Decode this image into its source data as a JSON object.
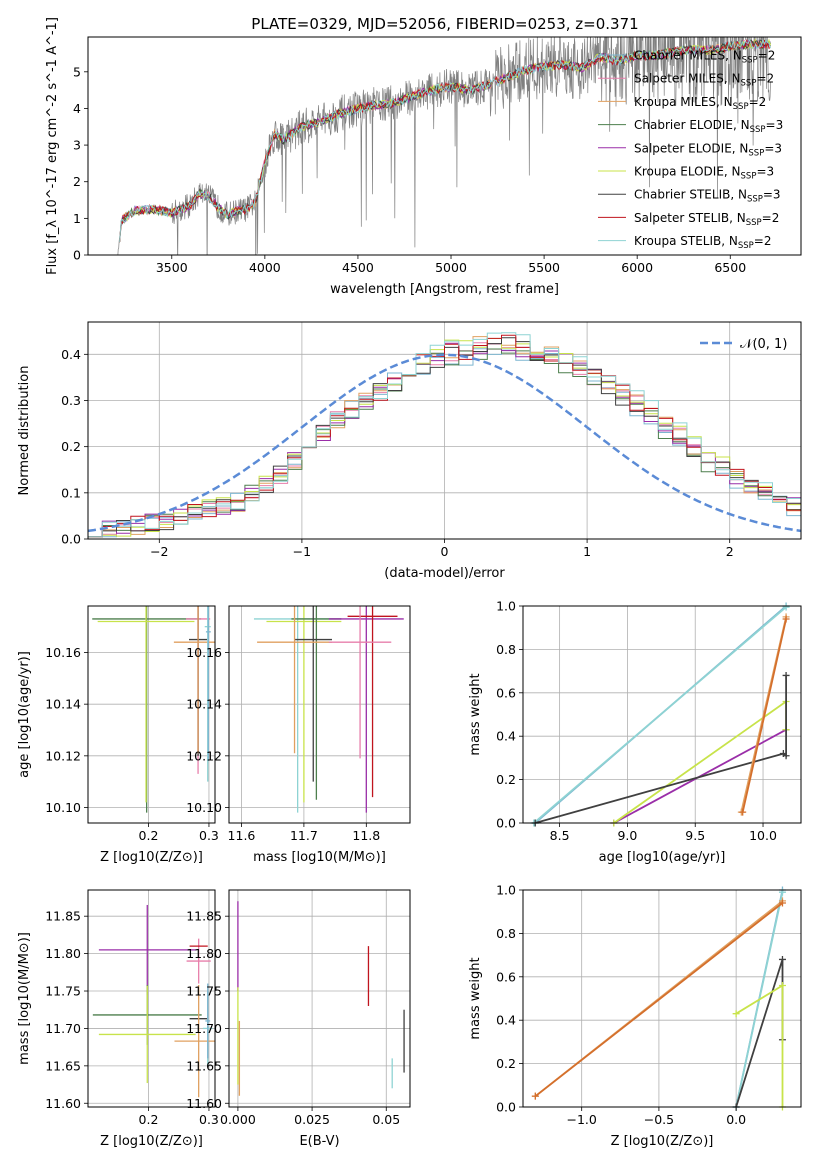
{
  "figure": {
    "title": "PLATE=0329, MJD=52056, FIBERID=0253, z=0.371"
  },
  "colors": [
    "#7db6d0",
    "#e77fab",
    "#e0a060",
    "#4d7f4d",
    "#9a2ea8",
    "#c8e34a",
    "#404040",
    "#c0141e",
    "#8ed3d3"
  ],
  "chart_data": [
    {
      "id": "spectrum",
      "type": "line",
      "xlabel": "wavelength [Angstrom, rest frame]",
      "ylabel": "Flux [f_λ 10^-17 erg cm^-2 s^-1 A^-1]",
      "xlim": [
        3050,
        6880
      ],
      "ylim": [
        0,
        5.95
      ],
      "xticks": [
        3500,
        4000,
        4500,
        5000,
        5500,
        6000,
        6500
      ],
      "yticks": [
        0,
        1,
        2,
        3,
        4,
        5
      ],
      "legend_position": "top-right",
      "series": [
        {
          "name": "Chabrier MILES, N_SSP=2",
          "color": "#7db6d0"
        },
        {
          "name": "Salpeter MILES, N_SSP=2",
          "color": "#e77fab"
        },
        {
          "name": "Kroupa MILES, N_SSP=2",
          "color": "#e0a060"
        },
        {
          "name": "Chabrier ELODIE, N_SSP=3",
          "color": "#4d7f4d"
        },
        {
          "name": "Salpeter ELODIE, N_SSP=3",
          "color": "#9a2ea8"
        },
        {
          "name": "Kroupa ELODIE, N_SSP=3",
          "color": "#c8e34a"
        },
        {
          "name": "Chabrier STELIB, N_SSP=3",
          "color": "#404040"
        },
        {
          "name": "Salpeter STELIB, N_SSP=2",
          "color": "#c0141e"
        },
        {
          "name": "Kroupa STELIB, N_SSP=2",
          "color": "#8ed3d3"
        }
      ],
      "model_continuum": {
        "x": [
          3210,
          3230,
          3300,
          3400,
          3500,
          3600,
          3650,
          3700,
          3750,
          3800,
          3850,
          3900,
          3950,
          4000,
          4050,
          4100,
          4200,
          4300,
          4400,
          4500,
          4600,
          4700,
          4800,
          4900,
          5000,
          5100,
          5200,
          5300,
          5400,
          5500,
          5600,
          5700,
          5800,
          5900,
          6000,
          6100,
          6200,
          6300,
          6400,
          6500,
          6600,
          6720
        ],
        "y": [
          0,
          0.95,
          1.2,
          1.25,
          1.15,
          1.35,
          1.7,
          1.6,
          1.3,
          1.1,
          1.2,
          1.25,
          1.45,
          2.55,
          3.3,
          3.15,
          3.5,
          3.65,
          3.85,
          4.0,
          4.1,
          4.15,
          4.35,
          4.5,
          4.6,
          4.5,
          4.65,
          4.85,
          5.05,
          5.15,
          5.2,
          5.1,
          5.4,
          5.3,
          5.45,
          5.45,
          5.55,
          5.6,
          5.6,
          5.7,
          5.75,
          5.75
        ]
      }
    },
    {
      "id": "residuals",
      "type": "line",
      "xlabel": "(data-model)/error",
      "ylabel": "Normed distribution",
      "xlim": [
        -2.5,
        2.5
      ],
      "ylim": [
        0,
        0.47
      ],
      "xticks": [
        -2,
        -1,
        0,
        1,
        2
      ],
      "yticks": [
        0.0,
        0.1,
        0.2,
        0.3,
        0.4
      ],
      "legend": "𝒩(0, 1)",
      "legend_position": "top-right",
      "gaussian": {
        "mu": 0,
        "sigma": 1,
        "color": "#5b8bd6"
      },
      "bin_width": 0.1,
      "hist_base": [
        0.015,
        0.02,
        0.025,
        0.03,
        0.035,
        0.04,
        0.05,
        0.055,
        0.065,
        0.07,
        0.08,
        0.1,
        0.12,
        0.14,
        0.17,
        0.2,
        0.23,
        0.26,
        0.28,
        0.3,
        0.32,
        0.34,
        0.36,
        0.38,
        0.39,
        0.4,
        0.4,
        0.41,
        0.42,
        0.42,
        0.41,
        0.4,
        0.39,
        0.38,
        0.36,
        0.35,
        0.33,
        0.31,
        0.29,
        0.27,
        0.24,
        0.22,
        0.19,
        0.17,
        0.15,
        0.13,
        0.11,
        0.09,
        0.08,
        0.07
      ]
    },
    {
      "id": "age_vs_Z",
      "type": "scatter",
      "xlabel": "Z [log10(Z/Z⊙)]",
      "ylabel": "age [log10(age/yr)]",
      "xlim": [
        0.1,
        0.31
      ],
      "ylim": [
        10.094,
        10.178
      ],
      "xticks": [
        0.2,
        0.3
      ],
      "yticks": [
        10.1,
        10.12,
        10.14,
        10.16
      ],
      "points": [
        {
          "x": 0.197,
          "y": 10.173,
          "xerr": 0.09,
          "yerr": 0.075,
          "color": "#4d7f4d"
        },
        {
          "x": 0.196,
          "y": 10.172,
          "xerr": 0.08,
          "yerr": 0.07,
          "color": "#c8e34a"
        },
        {
          "x": 0.282,
          "y": 10.173,
          "xerr": 0.02,
          "yerr": 0.06,
          "color": "#e77fab"
        },
        {
          "x": 0.282,
          "y": 10.165,
          "xerr": 0.015,
          "yerr": 0.045,
          "color": "#404040"
        },
        {
          "x": 0.282,
          "y": 10.164,
          "xerr": 0.04,
          "yerr": 0.043,
          "color": "#e0a060"
        },
        {
          "x": 0.298,
          "y": 10.17,
          "xerr": 0.005,
          "yerr": 0.06,
          "color": "#8ed3d3"
        },
        {
          "x": 0.299,
          "y": 10.168,
          "xerr": 0.004,
          "yerr": 0.05,
          "color": "#7db6d0"
        }
      ]
    },
    {
      "id": "age_vs_mass",
      "type": "scatter",
      "xlabel": "mass [log10(M/M⊙)]",
      "ylabel": "",
      "xlim": [
        11.58,
        11.87
      ],
      "ylim": [
        10.094,
        10.178
      ],
      "xticks": [
        11.6,
        11.7,
        11.8
      ],
      "yticks": [
        10.1,
        10.12,
        10.14,
        10.16
      ],
      "points": [
        {
          "x": 11.69,
          "y": 10.173,
          "xerr": 0.07,
          "yerr": 0.075,
          "color": "#8ed3d3"
        },
        {
          "x": 11.7,
          "y": 10.172,
          "xerr": 0.06,
          "yerr": 0.07,
          "color": "#c8e34a"
        },
        {
          "x": 11.72,
          "y": 10.173,
          "xerr": 0.04,
          "yerr": 0.07,
          "color": "#4d7f4d"
        },
        {
          "x": 11.8,
          "y": 10.173,
          "xerr": 0.06,
          "yerr": 0.075,
          "color": "#9a2ea8"
        },
        {
          "x": 11.81,
          "y": 10.174,
          "xerr": 0.04,
          "yerr": 0.07,
          "color": "#c0141e"
        },
        {
          "x": 11.715,
          "y": 10.165,
          "xerr": 0.03,
          "yerr": 0.055,
          "color": "#404040"
        },
        {
          "x": 11.685,
          "y": 10.164,
          "xerr": 0.06,
          "yerr": 0.043,
          "color": "#e0a060"
        },
        {
          "x": 11.79,
          "y": 10.164,
          "xerr": 0.05,
          "yerr": 0.045,
          "color": "#e77fab"
        }
      ]
    },
    {
      "id": "mass_weight_vs_age",
      "type": "line",
      "xlabel": "age [log10(age/yr)]",
      "ylabel": "mass weight",
      "xlim": [
        8.23,
        10.28
      ],
      "ylim": [
        0,
        1
      ],
      "xticks": [
        8.5,
        9.0,
        9.5,
        10.0
      ],
      "yticks": [
        0.0,
        0.2,
        0.4,
        0.6,
        0.8,
        1.0
      ],
      "series": [
        {
          "color": "#7db6d0",
          "x": [
            8.32,
            10.17
          ],
          "y": [
            0.0,
            1.0
          ]
        },
        {
          "color": "#8ed3d3",
          "x": [
            8.31,
            10.17
          ],
          "y": [
            0.0,
            0.995
          ]
        },
        {
          "color": "#9a2ea8",
          "x": [
            8.9,
            10.17
          ],
          "y": [
            0.0,
            0.43
          ]
        },
        {
          "color": "#c8e34a",
          "x": [
            8.9,
            10.17,
            10.17
          ],
          "y": [
            0.0,
            0.56,
            0.43
          ]
        },
        {
          "color": "#404040",
          "x": [
            8.32,
            10.15,
            10.17,
            10.17
          ],
          "y": [
            0.0,
            0.32,
            0.31,
            0.68
          ]
        },
        {
          "color": "#e0a060",
          "x": [
            9.84,
            10.17
          ],
          "y": [
            0.05,
            0.95
          ]
        },
        {
          "color": "#d46f2c",
          "x": [
            9.85,
            10.17
          ],
          "y": [
            0.05,
            0.94
          ]
        }
      ]
    },
    {
      "id": "mass_vs_Z",
      "type": "scatter",
      "xlabel": "Z [log10(Z/Z⊙)]",
      "ylabel": "mass [log10(M/M⊙)]",
      "xlim": [
        0.1,
        0.31
      ],
      "ylim": [
        11.595,
        11.885
      ],
      "xticks": [
        0.2,
        0.3
      ],
      "yticks": [
        11.6,
        11.65,
        11.7,
        11.75,
        11.8,
        11.85
      ],
      "points": [
        {
          "x": 0.198,
          "y": 11.805,
          "xerr": 0.08,
          "yerr": 0.06,
          "color": "#9a2ea8"
        },
        {
          "x": 0.198,
          "y": 11.718,
          "xerr": 0.09,
          "yerr": 0.04,
          "color": "#4d7f4d"
        },
        {
          "x": 0.198,
          "y": 11.692,
          "xerr": 0.08,
          "yerr": 0.065,
          "color": "#c8e34a"
        },
        {
          "x": 0.283,
          "y": 11.79,
          "xerr": 0.02,
          "yerr": 0.03,
          "color": "#e77fab"
        },
        {
          "x": 0.283,
          "y": 11.81,
          "xerr": 0.015,
          "yerr": 0.0,
          "color": "#c0141e"
        },
        {
          "x": 0.283,
          "y": 11.713,
          "xerr": 0.015,
          "yerr": 0.0,
          "color": "#404040"
        },
        {
          "x": 0.283,
          "y": 11.683,
          "xerr": 0.04,
          "yerr": 0.075,
          "color": "#e0a060"
        },
        {
          "x": 0.298,
          "y": 11.7,
          "xerr": 0.008,
          "yerr": 0.05,
          "color": "#8ed3d3"
        },
        {
          "x": 0.298,
          "y": 11.71,
          "xerr": 0.004,
          "yerr": 0.05,
          "color": "#7db6d0"
        }
      ]
    },
    {
      "id": "mass_vs_EBV",
      "type": "scatter",
      "xlabel": "E(B-V)",
      "ylabel": "",
      "xlim": [
        -0.003,
        0.058
      ],
      "ylim": [
        11.595,
        11.885
      ],
      "xticks": [
        0.0,
        0.025,
        0.05
      ],
      "yticks": [
        11.6,
        11.65,
        11.7,
        11.75,
        11.8,
        11.85
      ],
      "points": [
        {
          "x": 0.0,
          "y": 11.81,
          "xerr": 0,
          "yerr": 0.06,
          "color": "#9a2ea8"
        },
        {
          "x": 0.0,
          "y": 11.69,
          "xerr": 0,
          "yerr": 0.065,
          "color": "#c8e34a"
        },
        {
          "x": 0.0005,
          "y": 11.66,
          "xerr": 0,
          "yerr": 0.05,
          "color": "#e0a060"
        },
        {
          "x": 0.044,
          "y": 11.77,
          "xerr": 0,
          "yerr": 0.04,
          "color": "#c0141e"
        },
        {
          "x": 0.052,
          "y": 11.64,
          "xerr": 0,
          "yerr": 0.02,
          "color": "#8ed3d3"
        },
        {
          "x": 0.056,
          "y": 11.683,
          "xerr": 0,
          "yerr": 0.042,
          "color": "#404040"
        }
      ]
    },
    {
      "id": "mass_weight_vs_Z",
      "type": "line",
      "xlabel": "Z [log10(Z/Z⊙)]",
      "ylabel": "mass weight",
      "xlim": [
        -1.38,
        0.42
      ],
      "ylim": [
        0,
        1
      ],
      "xticks": [
        -1.0,
        -0.5,
        0.0
      ],
      "yticks": [
        0.0,
        0.2,
        0.4,
        0.6,
        0.8,
        1.0
      ],
      "series": [
        {
          "color": "#7db6d0",
          "x": [
            0.0,
            0.3
          ],
          "y": [
            0.0,
            1.0
          ]
        },
        {
          "color": "#8ed3d3",
          "x": [
            0.0,
            0.3
          ],
          "y": [
            0.0,
            0.99
          ]
        },
        {
          "color": "#404040",
          "x": [
            0.0,
            0.3,
            0.3
          ],
          "y": [
            0.0,
            0.68,
            0.31
          ]
        },
        {
          "color": "#c8e34a",
          "x": [
            0.0,
            0.3,
            0.3
          ],
          "y": [
            0.43,
            0.56,
            0.0
          ]
        },
        {
          "color": "#e0a060",
          "x": [
            -1.3,
            0.3
          ],
          "y": [
            0.05,
            0.95
          ]
        },
        {
          "color": "#d46f2c",
          "x": [
            -1.3,
            0.3
          ],
          "y": [
            0.05,
            0.94
          ]
        }
      ]
    }
  ]
}
